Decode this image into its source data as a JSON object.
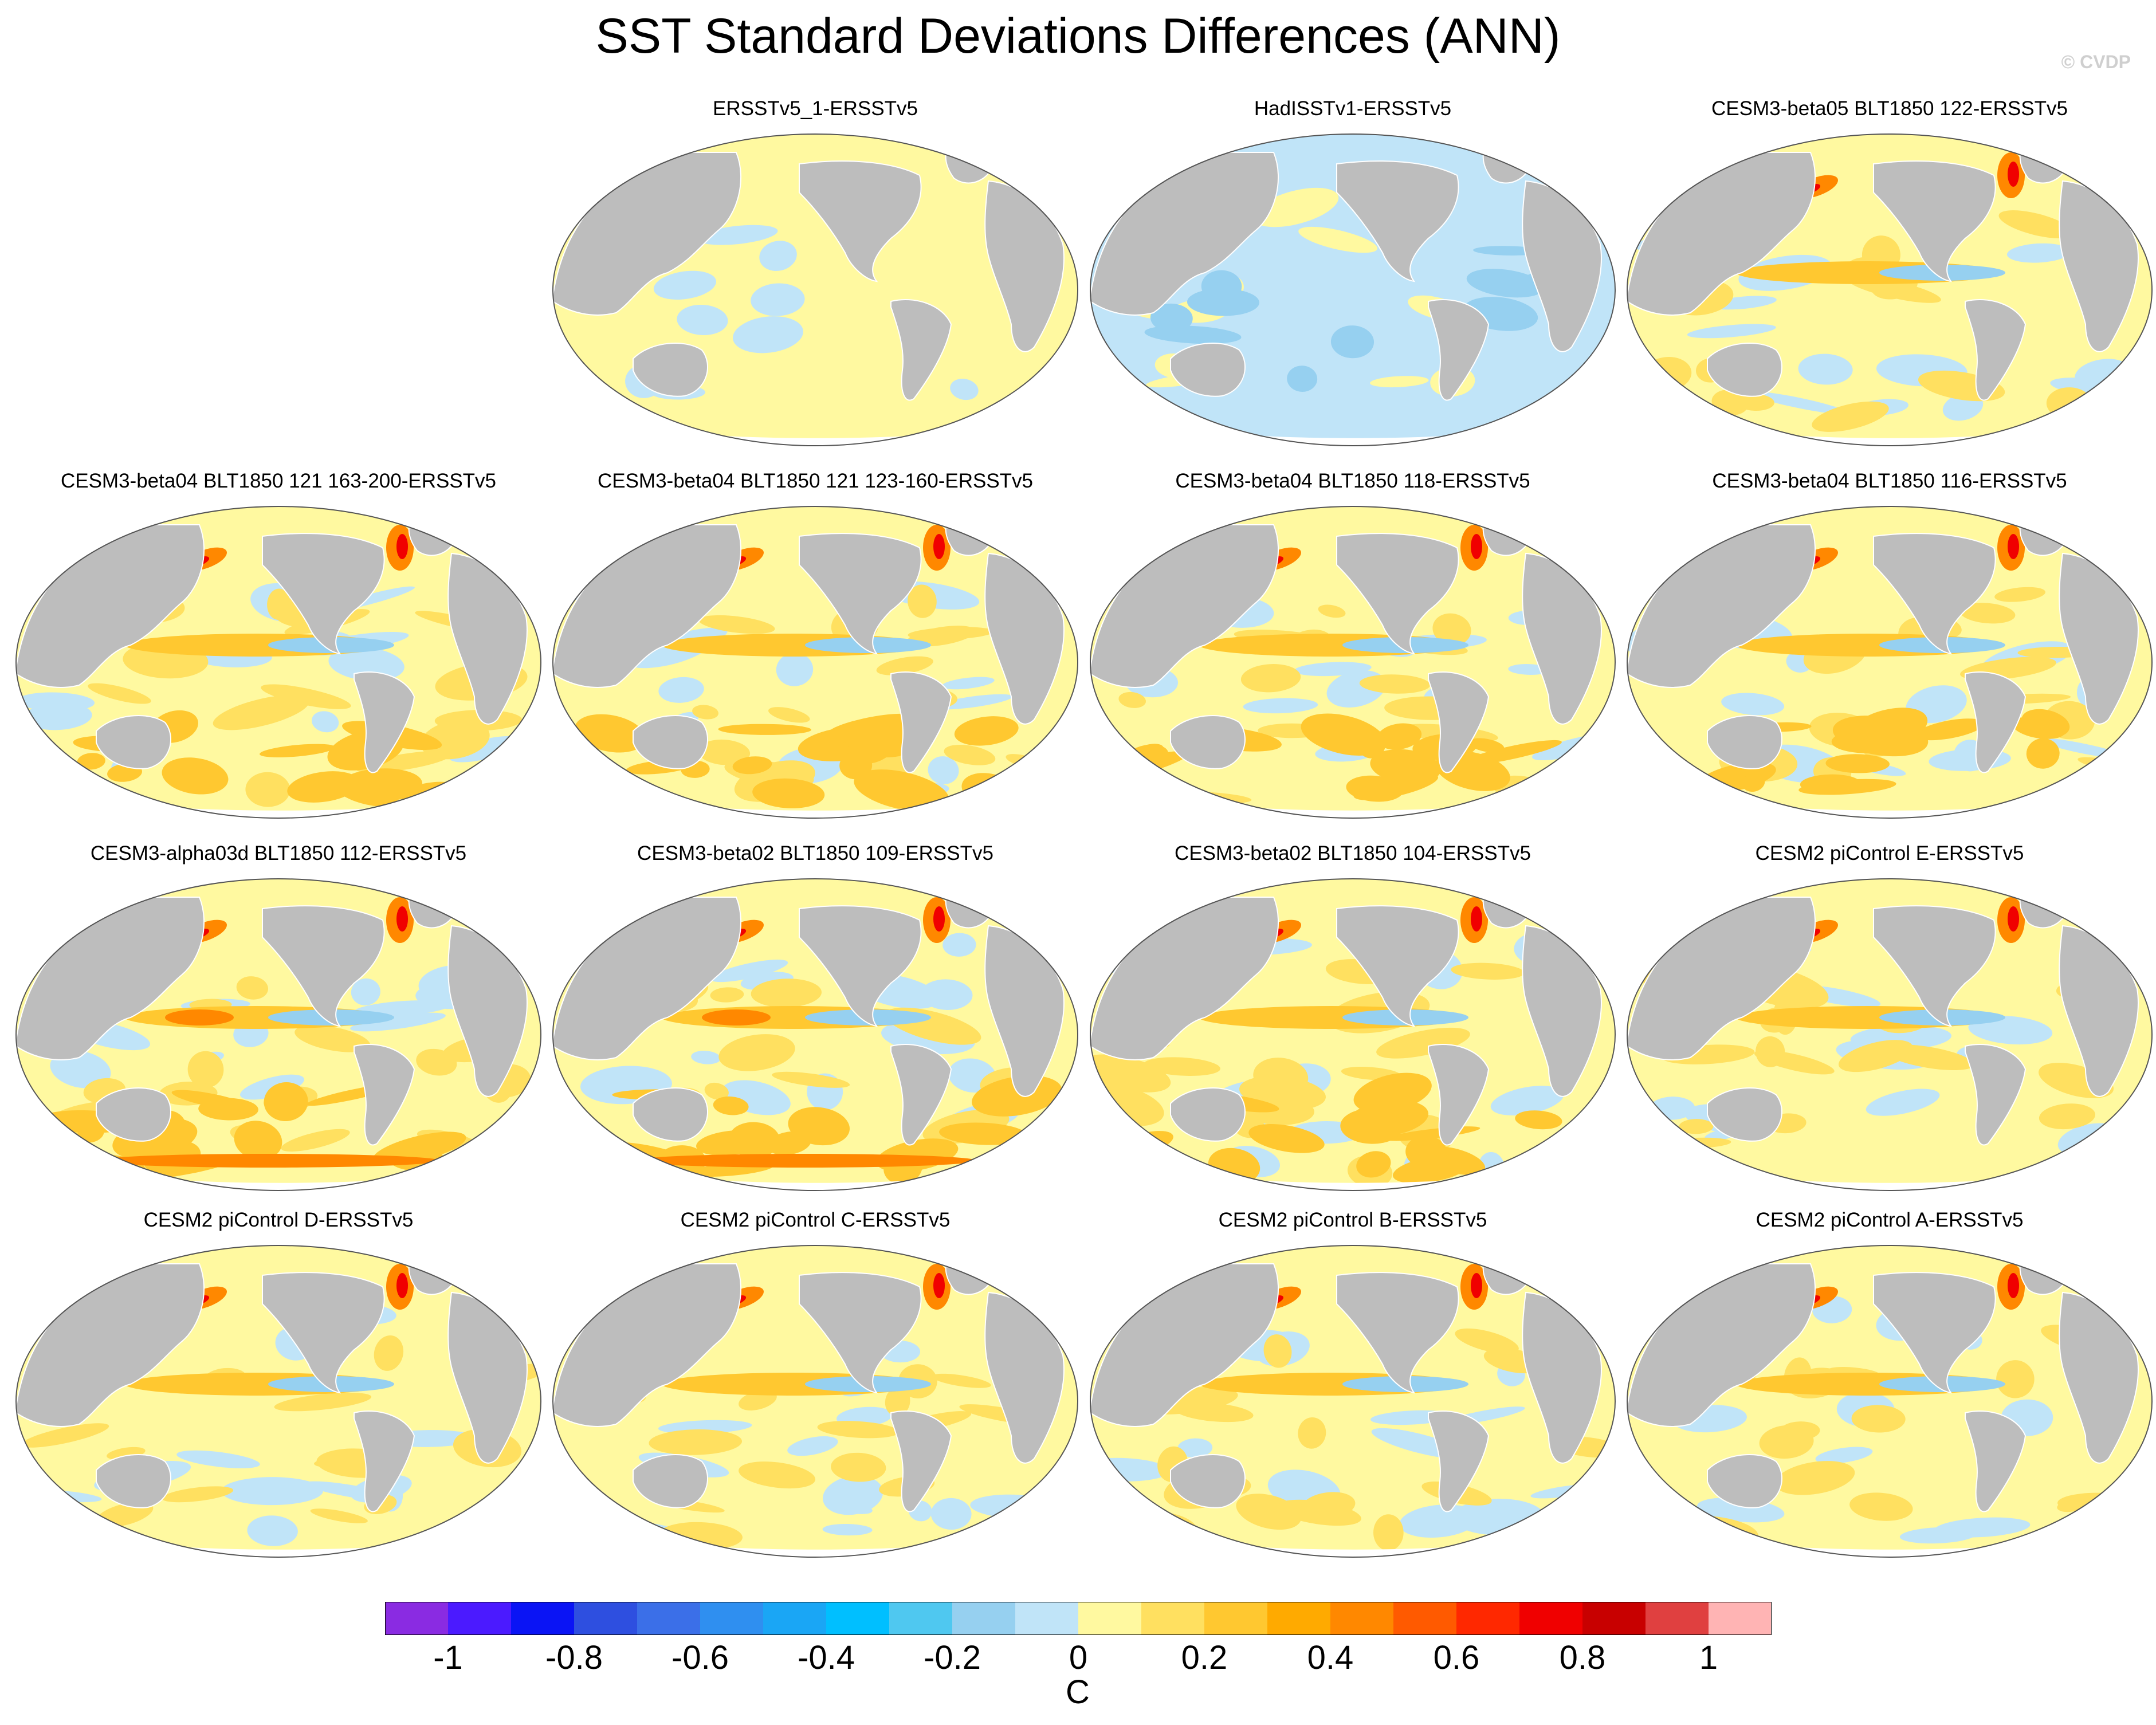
{
  "title": "SST Standard Deviations Differences (ANN)",
  "watermark": "© CVDP",
  "panels": [
    {
      "title": "ERSSTv5_1-ERSSTv5",
      "pattern": "neutral"
    },
    {
      "title": "HadISSTv1-ERSSTv5",
      "pattern": "cool"
    },
    {
      "title": "CESM3-beta05 BLT1850 122-ERSSTv5",
      "pattern": "mixed"
    },
    {
      "title": "CESM3-beta04 BLT1850 121 163-200-ERSSTv5",
      "pattern": "warm"
    },
    {
      "title": "CESM3-beta04 BLT1850 121 123-160-ERSSTv5",
      "pattern": "warm"
    },
    {
      "title": "CESM3-beta04 BLT1850 118-ERSSTv5",
      "pattern": "warm"
    },
    {
      "title": "CESM3-beta04 BLT1850 116-ERSSTv5",
      "pattern": "warm"
    },
    {
      "title": "CESM3-alpha03d BLT1850 112-ERSSTv5",
      "pattern": "hot"
    },
    {
      "title": "CESM3-beta02 BLT1850 109-ERSSTv5",
      "pattern": "hot"
    },
    {
      "title": "CESM3-beta02 BLT1850 104-ERSSTv5",
      "pattern": "warm"
    },
    {
      "title": "CESM2 piControl E-ERSSTv5",
      "pattern": "mixed"
    },
    {
      "title": "CESM2 piControl D-ERSSTv5",
      "pattern": "mixed"
    },
    {
      "title": "CESM2 piControl C-ERSSTv5",
      "pattern": "mixed"
    },
    {
      "title": "CESM2 piControl B-ERSSTv5",
      "pattern": "mixed"
    },
    {
      "title": "CESM2 piControl A-ERSSTv5",
      "pattern": "mixed"
    }
  ],
  "colorbar": {
    "units": "C",
    "labels": [
      "-1",
      "-0.8",
      "-0.6",
      "-0.4",
      "-0.2",
      "0",
      "0.2",
      "0.4",
      "0.6",
      "0.8",
      "1"
    ],
    "colors": [
      "#8a2be2",
      "#4b1aff",
      "#0a14f5",
      "#2e4fe0",
      "#3b6fe8",
      "#2f8ff0",
      "#1aa6f5",
      "#00bfff",
      "#4fc8f0",
      "#96d0f0",
      "#c0e4f8",
      "#fff9a0",
      "#ffe060",
      "#ffc830",
      "#ffaa00",
      "#ff8800",
      "#ff5a00",
      "#ff2800",
      "#f00000",
      "#c80000",
      "#e04040",
      "#ffb4b4"
    ]
  },
  "colors": {
    "land": "#bdbdbd",
    "ocean_neutral": "#fff9a0",
    "cool": "#c0e4f8",
    "cooler": "#96d0f0",
    "warm": "#ffe060",
    "warmer": "#ffc830",
    "hot": "#ff8800",
    "hottest": "#f00000"
  }
}
